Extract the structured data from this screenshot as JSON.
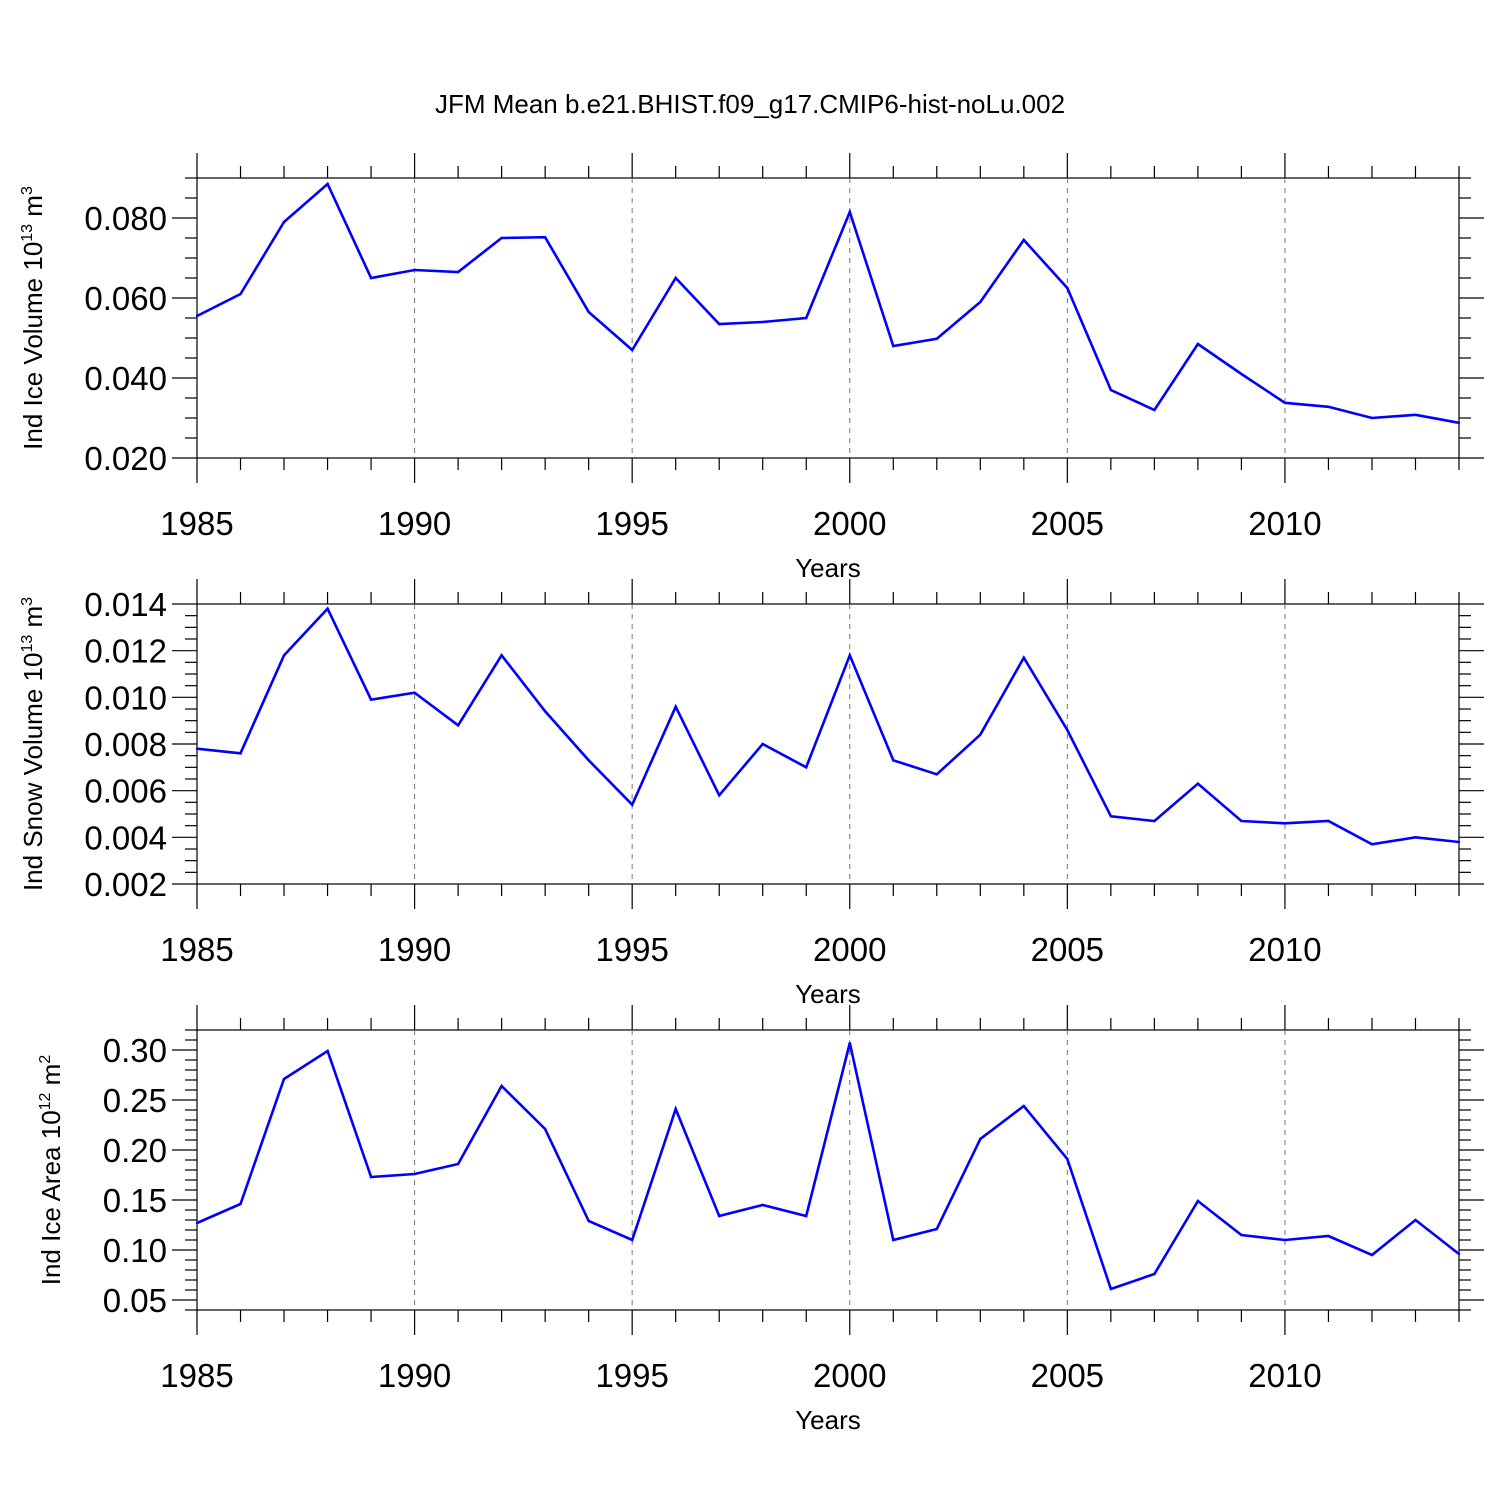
{
  "chart_data": [
    {
      "type": "line",
      "title": "JFM Mean b.e21.BHIST.f09_g17.CMIP6-hist-noLu.002",
      "xlabel": "Years",
      "ylabel": "Ind Ice Volume 10",
      "ylabel_exp": "13",
      "ylabel_unit": " m",
      "ylabel_unit_exp": "3",
      "xlim": [
        1985,
        2014
      ],
      "ylim": [
        0.02,
        0.09
      ],
      "xticks": [
        1985,
        1990,
        1995,
        2000,
        2005,
        2010
      ],
      "xtick_labels": [
        "1985",
        "1990",
        "1995",
        "2000",
        "2005",
        "2010"
      ],
      "yticks": [
        0.02,
        0.04,
        0.06,
        0.08
      ],
      "ytick_labels": [
        "0.020",
        "0.040",
        "0.060",
        "0.080"
      ],
      "series": [
        {
          "name": "Ind Ice Volume",
          "color": "#0000ff",
          "x": [
            1985,
            1986,
            1987,
            1988,
            1989,
            1990,
            1991,
            1992,
            1993,
            1994,
            1995,
            1996,
            1997,
            1998,
            1999,
            2000,
            2001,
            2002,
            2003,
            2004,
            2005,
            2006,
            2007,
            2008,
            2009,
            2010,
            2011,
            2012,
            2013,
            2014
          ],
          "values": [
            0.0555,
            0.061,
            0.079,
            0.0885,
            0.065,
            0.067,
            0.0665,
            0.075,
            0.0752,
            0.0565,
            0.047,
            0.065,
            0.0535,
            0.054,
            0.055,
            0.0815,
            0.048,
            0.0498,
            0.059,
            0.0745,
            0.0625,
            0.037,
            0.032,
            0.0485,
            0.041,
            0.0338,
            0.0328,
            0.03,
            0.0308,
            0.0288
          ]
        }
      ]
    },
    {
      "type": "line",
      "xlabel": "Years",
      "ylabel": "Ind Snow Volume 10",
      "ylabel_exp": "13",
      "ylabel_unit": " m",
      "ylabel_unit_exp": "3",
      "xlim": [
        1985,
        2014
      ],
      "ylim": [
        0.002,
        0.014
      ],
      "xticks": [
        1985,
        1990,
        1995,
        2000,
        2005,
        2010
      ],
      "xtick_labels": [
        "1985",
        "1990",
        "1995",
        "2000",
        "2005",
        "2010"
      ],
      "yticks": [
        0.002,
        0.004,
        0.006,
        0.008,
        0.01,
        0.012,
        0.014
      ],
      "ytick_labels": [
        "0.002",
        "0.004",
        "0.006",
        "0.008",
        "0.010",
        "0.012",
        "0.014"
      ],
      "series": [
        {
          "name": "Ind Snow Volume",
          "color": "#0000ff",
          "x": [
            1985,
            1986,
            1987,
            1988,
            1989,
            1990,
            1991,
            1992,
            1993,
            1994,
            1995,
            1996,
            1997,
            1998,
            1999,
            2000,
            2001,
            2002,
            2003,
            2004,
            2005,
            2006,
            2007,
            2008,
            2009,
            2010,
            2011,
            2012,
            2013,
            2014
          ],
          "values": [
            0.0078,
            0.0076,
            0.0118,
            0.0138,
            0.0099,
            0.0102,
            0.0088,
            0.0118,
            0.0094,
            0.0073,
            0.0054,
            0.0096,
            0.0058,
            0.008,
            0.007,
            0.0118,
            0.0073,
            0.0067,
            0.0084,
            0.0117,
            0.0086,
            0.0049,
            0.0047,
            0.0063,
            0.0047,
            0.0046,
            0.0047,
            0.0037,
            0.004,
            0.0038
          ]
        }
      ]
    },
    {
      "type": "line",
      "xlabel": "Years",
      "ylabel": "Ind Ice Area 10",
      "ylabel_exp": "12",
      "ylabel_unit": " m",
      "ylabel_unit_exp": "2",
      "xlim": [
        1985,
        2014
      ],
      "ylim": [
        0.04,
        0.32
      ],
      "xticks": [
        1985,
        1990,
        1995,
        2000,
        2005,
        2010
      ],
      "xtick_labels": [
        "1985",
        "1990",
        "1995",
        "2000",
        "2005",
        "2010"
      ],
      "yticks": [
        0.05,
        0.1,
        0.15,
        0.2,
        0.25,
        0.3
      ],
      "ytick_labels": [
        "0.05",
        "0.10",
        "0.15",
        "0.20",
        "0.25",
        "0.30"
      ],
      "series": [
        {
          "name": "Ind Ice Area",
          "color": "#0000ff",
          "x": [
            1985,
            1986,
            1987,
            1988,
            1989,
            1990,
            1991,
            1992,
            1993,
            1994,
            1995,
            1996,
            1997,
            1998,
            1999,
            2000,
            2001,
            2002,
            2003,
            2004,
            2005,
            2006,
            2007,
            2008,
            2009,
            2010,
            2011,
            2012,
            2013,
            2014
          ],
          "values": [
            0.127,
            0.146,
            0.271,
            0.299,
            0.173,
            0.176,
            0.186,
            0.264,
            0.221,
            0.129,
            0.11,
            0.241,
            0.134,
            0.145,
            0.134,
            0.307,
            0.11,
            0.121,
            0.211,
            0.244,
            0.191,
            0.061,
            0.076,
            0.149,
            0.115,
            0.11,
            0.114,
            0.095,
            0.13,
            0.096
          ]
        }
      ]
    }
  ]
}
